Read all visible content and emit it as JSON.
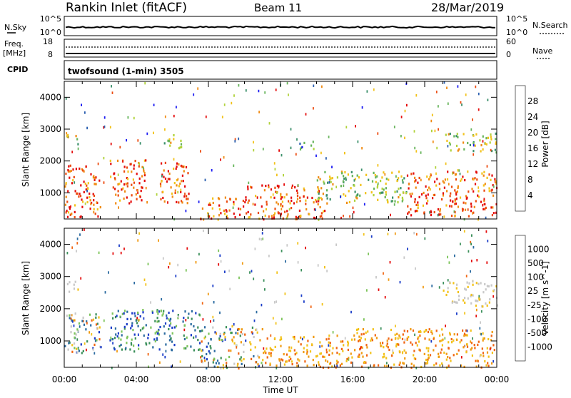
{
  "header": {
    "station": "Rankin Inlet (fitACF)",
    "beam": "Beam 11",
    "date": "28/Mar/2019"
  },
  "top_panels": {
    "nsky_label": "N.Sky",
    "nsky_ticks": [
      "10^5",
      "10^0"
    ],
    "nsearch_label": "N.Search",
    "nsearch_ticks": [
      "10^5",
      "10^0"
    ],
    "freq_label": "Freq.",
    "freq_unit": "[MHz]",
    "freq_ticks": [
      "18",
      "8"
    ],
    "nave_label": "Nave",
    "nave_ticks": [
      "60",
      "0"
    ],
    "cpid_label": "CPID",
    "cpid_text": "twofsound (1-min) 3505"
  },
  "chart_data": [
    {
      "type": "heatmap",
      "title": "",
      "xlabel": "Time UT",
      "ylabel": "Slant Range [km]",
      "x_ticks": [
        "00:00",
        "04:00",
        "08:00",
        "12:00",
        "16:00",
        "20:00",
        "00:00"
      ],
      "xlim_hours": [
        0,
        24
      ],
      "y_ticks": [
        1000,
        2000,
        3000,
        4000
      ],
      "ylim_km": [
        180,
        4500
      ],
      "colorbar": {
        "label": "Power [dB]",
        "ticks": [
          4,
          8,
          12,
          16,
          20,
          24,
          28
        ],
        "range": [
          0,
          32
        ],
        "colors": [
          "#1c1cf2",
          "#2a5fb0",
          "#3a8f6a",
          "#66b45a",
          "#b0d23a",
          "#f2c21a",
          "#f08a12",
          "#ec4a0e",
          "#e40a0a"
        ]
      },
      "regions": [
        {
          "t": [
            0.0,
            2.0
          ],
          "r": [
            200,
            1900
          ],
          "level": "high"
        },
        {
          "t": [
            2.5,
            4.5
          ],
          "r": [
            700,
            2100
          ],
          "level": "high"
        },
        {
          "t": [
            5.3,
            7.0
          ],
          "r": [
            700,
            2000
          ],
          "level": "high"
        },
        {
          "t": [
            7.5,
            10.0
          ],
          "r": [
            180,
            900
          ],
          "level": "high"
        },
        {
          "t": [
            10.0,
            14.5
          ],
          "r": [
            200,
            1300
          ],
          "level": "high"
        },
        {
          "t": [
            14.0,
            19.0
          ],
          "r": [
            700,
            1700
          ],
          "level": "mid"
        },
        {
          "t": [
            19.0,
            24.0
          ],
          "r": [
            300,
            1700
          ],
          "level": "high"
        },
        {
          "t": [
            0.1,
            0.8
          ],
          "r": [
            2500,
            2900
          ],
          "level": "mid"
        },
        {
          "t": [
            5.5,
            6.5
          ],
          "r": [
            2400,
            2900
          ],
          "level": "mid"
        },
        {
          "t": [
            13.0,
            14.0
          ],
          "r": [
            2400,
            2700
          ],
          "level": "low"
        },
        {
          "t": [
            21.0,
            24.0
          ],
          "r": [
            2300,
            2900
          ],
          "level": "mid"
        }
      ]
    },
    {
      "type": "heatmap",
      "title": "",
      "xlabel": "Time UT",
      "ylabel": "Slant Range [km]",
      "x_ticks": [
        "00:00",
        "04:00",
        "08:00",
        "12:00",
        "16:00",
        "20:00",
        "00:00"
      ],
      "xlim_hours": [
        0,
        24
      ],
      "y_ticks": [
        1000,
        2000,
        3000,
        4000
      ],
      "ylim_km": [
        180,
        4500
      ],
      "colorbar": {
        "label": "Velocity [m s^-1]",
        "tick_labels": [
          "1000",
          "500",
          "100",
          "25",
          "-25",
          "-100",
          "-500",
          "-1000"
        ],
        "colors": [
          "#1a3cc8",
          "#2a6aa0",
          "#3a8f5a",
          "#7cc45a",
          "#c8c8c8",
          "#f2c21a",
          "#f09a12",
          "#f06410",
          "#e40a0a"
        ]
      },
      "regions": [
        {
          "t": [
            0.0,
            2.0
          ],
          "r": [
            600,
            1900
          ],
          "level": "mixed"
        },
        {
          "t": [
            2.5,
            7.5
          ],
          "r": [
            700,
            2000
          ],
          "level": "positive"
        },
        {
          "t": [
            7.5,
            11.0
          ],
          "r": [
            180,
            1500
          ],
          "level": "mixed"
        },
        {
          "t": [
            11.0,
            16.0
          ],
          "r": [
            200,
            1200
          ],
          "level": "negative"
        },
        {
          "t": [
            16.0,
            24.0
          ],
          "r": [
            200,
            1400
          ],
          "level": "negative"
        },
        {
          "t": [
            0.1,
            0.8
          ],
          "r": [
            2500,
            2900
          ],
          "level": "zero"
        },
        {
          "t": [
            21.0,
            24.0
          ],
          "r": [
            2100,
            2900
          ],
          "level": "zero"
        }
      ]
    }
  ]
}
